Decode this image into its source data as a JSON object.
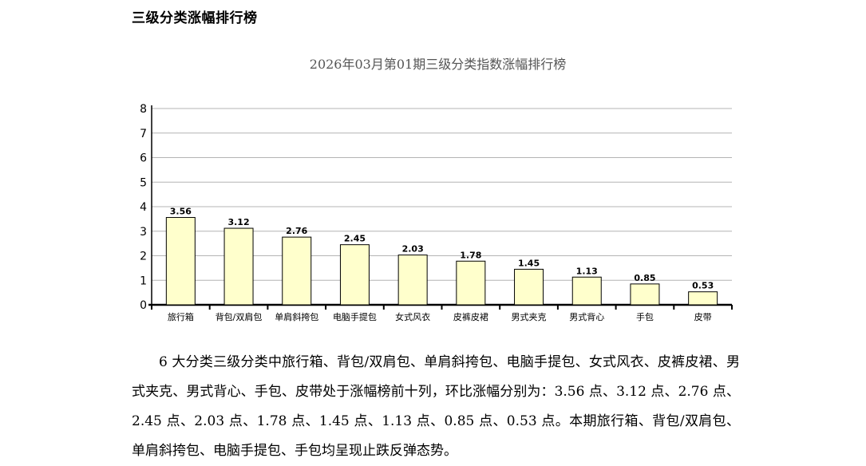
{
  "section": {
    "title": "三级分类涨幅排行榜"
  },
  "chart_data": {
    "type": "bar",
    "title": "2026年03月第01期三级分类指数涨幅排行榜",
    "xlabel": "",
    "ylabel": "",
    "ylim": [
      0,
      8
    ],
    "yticks": [
      0,
      1,
      2,
      3,
      4,
      5,
      6,
      7,
      8
    ],
    "grid": true,
    "legend": "none",
    "categories": [
      "旅行箱",
      "背包/双肩包",
      "单肩斜挎包",
      "电脑手提包",
      "女式风衣",
      "皮裤皮裙",
      "男式夹克",
      "男式背心",
      "手包",
      "皮带"
    ],
    "values": [
      3.56,
      3.12,
      2.76,
      2.45,
      2.03,
      1.78,
      1.45,
      1.13,
      0.85,
      0.53
    ],
    "value_labels": [
      "3.56",
      "3.12",
      "2.76",
      "2.45",
      "2.03",
      "1.78",
      "1.45",
      "1.13",
      "0.85",
      "0.53"
    ],
    "colors": {
      "bar_fill": "#ffffcc",
      "bar_stroke": "#000000",
      "grid": "#b4b4b4",
      "title": "#555555"
    }
  },
  "description": {
    "text": "6 大分类三级分类中旅行箱、背包/双肩包、单肩斜挎包、电脑手提包、女式风衣、皮裤皮裙、男式夹克、男式背心、手包、皮带处于涨幅榜前十列，环比涨幅分别为：3.56 点、3.12 点、2.76 点、2.45 点、2.03 点、1.78 点、1.45 点、1.13 点、0.85 点、0.53 点。本期旅行箱、背包/双肩包、单肩斜挎包、电脑手提包、手包均呈现止跌反弹态势。"
  }
}
